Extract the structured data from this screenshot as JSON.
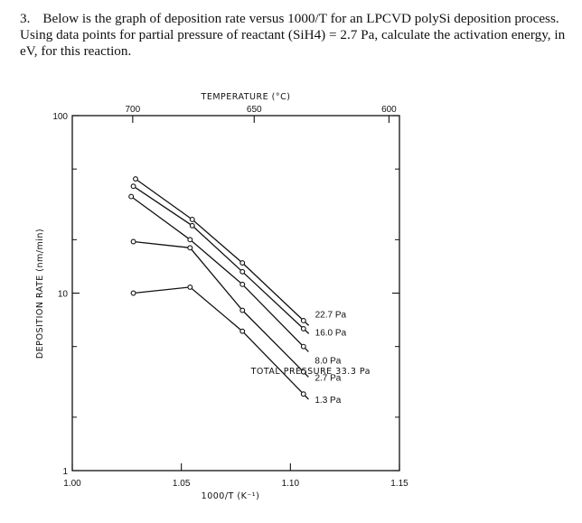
{
  "question": {
    "number": "3.",
    "text": "Below is the graph of deposition rate versus 1000/T for an LPCVD polySi deposition process. Using data points for partial pressure of reactant (SiH4) = 2.7 Pa, calculate the activation energy, in eV, for this reaction."
  },
  "chart_data": {
    "type": "line",
    "x": [
      1.0,
      1.15
    ],
    "xlabel": "1000/T (K⁻¹)",
    "ylabel": "DEPOSITION RATE (nm/min)",
    "top_axis_label": "TEMPERATURE (°C)",
    "yscale": "log",
    "xlim": [
      1.0,
      1.15
    ],
    "ylim": [
      1,
      100
    ],
    "x_ticks": [
      "1.00",
      "1.05",
      "1.10",
      "1.15"
    ],
    "x_tick_values": [
      1.0,
      1.05,
      1.1,
      1.15
    ],
    "y_ticks": [
      "1",
      "10",
      "100"
    ],
    "y_tick_values": [
      1,
      10,
      100
    ],
    "top_ticks": [
      "700",
      "650",
      "600"
    ],
    "top_tick_values": [
      1.0277,
      1.0834,
      1.1452
    ],
    "annotation": "TOTAL PRESSURE 33.3 Pa",
    "grid": false,
    "series": [
      {
        "name": "22.7 Pa",
        "x": [
          1.029,
          1.055,
          1.078,
          1.106
        ],
        "y": [
          44,
          26,
          14.8,
          7.0
        ]
      },
      {
        "name": "16.0 Pa",
        "x": [
          1.028,
          1.055,
          1.078,
          1.106
        ],
        "y": [
          40,
          24,
          13.2,
          6.3
        ]
      },
      {
        "name": "8.0 Pa",
        "x": [
          1.027,
          1.054,
          1.078,
          1.106
        ],
        "y": [
          35,
          20,
          11.2,
          5.0
        ]
      },
      {
        "name": "2.7 Pa",
        "x": [
          1.028,
          1.054,
          1.078,
          1.106
        ],
        "y": [
          19.5,
          18.0,
          8.0,
          3.6
        ]
      },
      {
        "name": "1.3 Pa",
        "x": [
          1.028,
          1.054,
          1.078,
          1.106
        ],
        "y": [
          10.0,
          10.8,
          6.1,
          2.7
        ]
      }
    ]
  }
}
